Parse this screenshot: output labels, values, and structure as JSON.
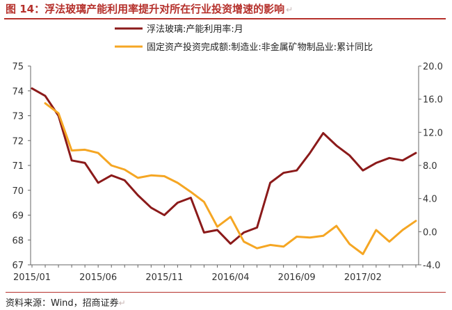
{
  "header": {
    "title": "图 14：浮法玻璃产能利用率提升对所在行业投资增速的影响",
    "mark": "↵"
  },
  "footer": {
    "source": "资料来源：Wind，招商证券",
    "mark": "↵"
  },
  "chart_data": {
    "type": "line",
    "x": [
      "2015/01",
      "2015/02",
      "2015/03",
      "2015/04",
      "2015/05",
      "2015/06",
      "2015/07",
      "2015/08",
      "2015/09",
      "2015/10",
      "2015/11",
      "2015/12",
      "2016/01",
      "2016/02",
      "2016/03",
      "2016/04",
      "2016/05",
      "2016/06",
      "2016/07",
      "2016/08",
      "2016/09",
      "2016/10",
      "2016/11",
      "2016/12",
      "2017/01",
      "2017/02",
      "2017/03",
      "2017/04",
      "2017/05",
      "2017/06"
    ],
    "xtick_labels": [
      "2015/01",
      "2015/06",
      "2015/11",
      "2016/04",
      "2016/09",
      "2017/02"
    ],
    "y_left": {
      "lim": [
        67,
        75
      ],
      "ticks": [
        "67",
        "68",
        "69",
        "70",
        "71",
        "72",
        "73",
        "74",
        "75"
      ]
    },
    "y_right": {
      "lim": [
        -4,
        20
      ],
      "ticks": [
        "-4.0",
        "0.0",
        "4.0",
        "8.0",
        "12.0",
        "16.0",
        "20.0"
      ]
    },
    "legend_position": "top",
    "grid": false,
    "series": [
      {
        "name": "浮法玻璃:产能利用率:月",
        "axis": "left",
        "color": "#8b1a1a",
        "values": [
          74.1,
          73.8,
          73.0,
          71.2,
          71.1,
          70.3,
          70.6,
          70.4,
          69.8,
          69.3,
          69.0,
          69.5,
          69.7,
          68.3,
          68.4,
          67.85,
          68.3,
          68.5,
          70.3,
          70.7,
          70.8,
          71.5,
          72.3,
          71.8,
          71.4,
          70.8,
          71.1,
          71.3,
          71.2,
          71.5
        ]
      },
      {
        "name": "固定资产投资完成额:制造业:非金属矿物制品业:累计同比",
        "axis": "right",
        "color": "#f5a623",
        "values": [
          null,
          15.5,
          14.3,
          9.8,
          9.9,
          9.5,
          8.0,
          7.5,
          6.5,
          6.8,
          6.7,
          5.9,
          4.8,
          3.6,
          0.6,
          1.8,
          -1.2,
          -2.0,
          -1.6,
          -1.8,
          -0.6,
          -0.7,
          -0.5,
          0.7,
          -1.5,
          -2.7,
          0.2,
          -1.2,
          0.2,
          1.3
        ]
      }
    ]
  }
}
